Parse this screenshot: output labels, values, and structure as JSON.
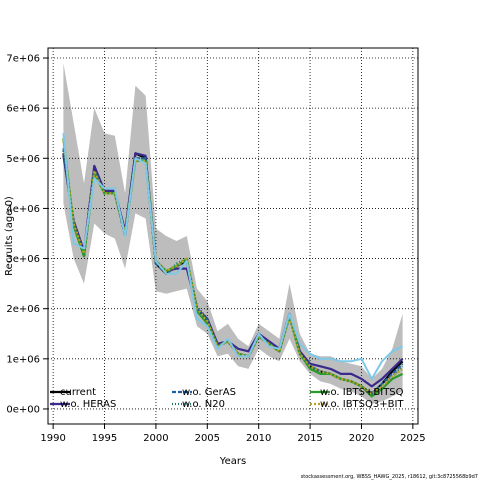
{
  "chart_data": {
    "type": "line",
    "title": "",
    "xlabel": "Years",
    "ylabel": "Recruits (age 0)",
    "xlim": [
      1989.5,
      2025.5
    ],
    "ylim": [
      -300000,
      7200000
    ],
    "x_ticks": [
      1990,
      1995,
      2000,
      2005,
      2010,
      2015,
      2020,
      2025
    ],
    "x_tick_labels": [
      "1990",
      "1995",
      "2000",
      "2005",
      "2010",
      "2015",
      "2020",
      "2025"
    ],
    "y_ticks": [
      0,
      1000000,
      2000000,
      3000000,
      4000000,
      5000000,
      6000000,
      7000000
    ],
    "y_tick_labels": [
      "0e+00",
      "1e+06",
      "2e+06",
      "3e+06",
      "4e+06",
      "5e+06",
      "6e+06",
      "7e+06"
    ],
    "grid": true,
    "legend_position": "bottom",
    "x": [
      1991,
      1992,
      1993,
      1994,
      1995,
      1996,
      1997,
      1998,
      1999,
      2000,
      2001,
      2002,
      2003,
      2004,
      2005,
      2006,
      2007,
      2008,
      2009,
      2010,
      2011,
      2012,
      2013,
      2014,
      2015,
      2016,
      2017,
      2018,
      2019,
      2020,
      2021,
      2022,
      2023,
      2024
    ],
    "confidence_band": {
      "lower": [
        4100000,
        3000000,
        2500000,
        3700000,
        3500000,
        3400000,
        2800000,
        3900000,
        3800000,
        2350000,
        2300000,
        2350000,
        2400000,
        1650000,
        1500000,
        1050000,
        1100000,
        850000,
        800000,
        1200000,
        1050000,
        950000,
        1400000,
        950000,
        700000,
        550000,
        500000,
        400000,
        350000,
        250000,
        100000,
        150000,
        250000,
        350000
      ],
      "upper": [
        6900000,
        5700000,
        4500000,
        6000000,
        5500000,
        5450000,
        4300000,
        6450000,
        6250000,
        3600000,
        3450000,
        3350000,
        3450000,
        2400000,
        2150000,
        1550000,
        1700000,
        1400000,
        1250000,
        1700000,
        1550000,
        1400000,
        2500000,
        1500000,
        1100000,
        1050000,
        1050000,
        950000,
        900000,
        850000,
        600000,
        800000,
        1200000,
        1900000
      ]
    },
    "series": [
      {
        "name": "current",
        "color": "#000000",
        "dash": "",
        "values": [
          5100000,
          3700000,
          3050000,
          4800000,
          4300000,
          4300000,
          3500000,
          5100000,
          5000000,
          2900000,
          2700000,
          2850000,
          2950000,
          2000000,
          1750000,
          1250000,
          1350000,
          1100000,
          1050000,
          1450000,
          1300000,
          1150000,
          1850000,
          1150000,
          850000,
          750000,
          700000,
          600000,
          550000,
          450000,
          300000,
          500000,
          750000,
          950000
        ]
      },
      {
        "name": "w.o. HERAS",
        "color": "#3a2a8c",
        "dash": "",
        "values": [
          5050000,
          3750000,
          3150000,
          4850000,
          4350000,
          4350000,
          3550000,
          5100000,
          5050000,
          2950000,
          2750000,
          2800000,
          2800000,
          2000000,
          1800000,
          1300000,
          1350000,
          1200000,
          1150000,
          1500000,
          1350000,
          1200000,
          1900000,
          1150000,
          900000,
          850000,
          800000,
          700000,
          700000,
          600000,
          450000,
          600000,
          800000,
          1000000
        ]
      },
      {
        "name": "w.o. GerAS",
        "color": "#1f5f9f",
        "dash": "4,2",
        "values": [
          5200000,
          3700000,
          3050000,
          4750000,
          4300000,
          4300000,
          3450000,
          5000000,
          5000000,
          2900000,
          2700000,
          2850000,
          2950000,
          2000000,
          1750000,
          1250000,
          1350000,
          1100000,
          1050000,
          1450000,
          1300000,
          1150000,
          1850000,
          1100000,
          850000,
          750000,
          700000,
          600000,
          550000,
          450000,
          300000,
          500000,
          700000,
          900000
        ]
      },
      {
        "name": "w.o. N20",
        "color": "#1e7a6a",
        "dash": "1,2",
        "values": [
          5150000,
          3650000,
          3050000,
          4750000,
          4300000,
          4300000,
          3450000,
          5000000,
          5000000,
          2950000,
          2700000,
          2900000,
          3000000,
          2050000,
          1800000,
          1250000,
          1350000,
          1100000,
          1050000,
          1450000,
          1300000,
          1150000,
          1850000,
          1100000,
          850000,
          750000,
          700000,
          600000,
          550000,
          450000,
          300000,
          450000,
          650000,
          850000
        ]
      },
      {
        "name": "w.o. IBTS+BITSQ",
        "color": "#2a9a2a",
        "dash": "",
        "values": [
          5400000,
          3650000,
          3050000,
          4700000,
          4300000,
          4300000,
          3500000,
          4950000,
          4950000,
          2950000,
          2750000,
          2850000,
          3000000,
          1950000,
          1700000,
          1250000,
          1350000,
          1100000,
          1050000,
          1450000,
          1300000,
          1150000,
          1850000,
          1100000,
          800000,
          700000,
          700000,
          600000,
          550000,
          450000,
          250000,
          400000,
          600000,
          700000
        ]
      },
      {
        "name": "w.o. IBTSQ3+BIT",
        "color": "#b8a020",
        "dash": "2,2",
        "values": [
          5350000,
          3700000,
          3100000,
          4750000,
          4300000,
          4300000,
          3500000,
          4950000,
          4950000,
          2950000,
          2750000,
          2850000,
          3000000,
          2000000,
          1750000,
          1250000,
          1350000,
          1100000,
          1050000,
          1450000,
          1300000,
          1150000,
          1850000,
          1100000,
          850000,
          750000,
          700000,
          600000,
          550000,
          450000,
          300000,
          450000,
          650000,
          800000
        ]
      },
      {
        "name": "",
        "color": "#7ec8e8",
        "dash": "",
        "values": [
          5500000,
          3300000,
          3200000,
          4600000,
          4400000,
          4400000,
          3450000,
          5000000,
          4900000,
          2950000,
          2700000,
          2700000,
          2950000,
          1800000,
          1650000,
          1200000,
          1400000,
          1050000,
          1050000,
          1500000,
          1250000,
          1200000,
          1900000,
          1300000,
          1100000,
          1000000,
          1000000,
          950000,
          950000,
          1000000,
          600000,
          950000,
          1150000,
          1250000
        ]
      }
    ]
  },
  "legend": {
    "items": [
      {
        "label": "current",
        "color": "#000000",
        "dash": ""
      },
      {
        "label": "w.o. HERAS",
        "color": "#3a2a8c",
        "dash": ""
      },
      {
        "label": "w.o. GerAS",
        "color": "#1f5f9f",
        "dash": "4,2"
      },
      {
        "label": "w.o. N20",
        "color": "#1e7a6a",
        "dash": "1,2"
      },
      {
        "label": "w.o. IBTS+BITSQ",
        "color": "#2a9a2a",
        "dash": ""
      },
      {
        "label": "w.o. IBTSQ3+BIT",
        "color": "#b8a020",
        "dash": "2,2"
      }
    ]
  },
  "colors": {
    "band": "#bdbdbd",
    "grid": "#000000"
  },
  "footer": "stockassessment.org, WBSS_HAWG_2025, r18612, git:3c8725568b9d7"
}
